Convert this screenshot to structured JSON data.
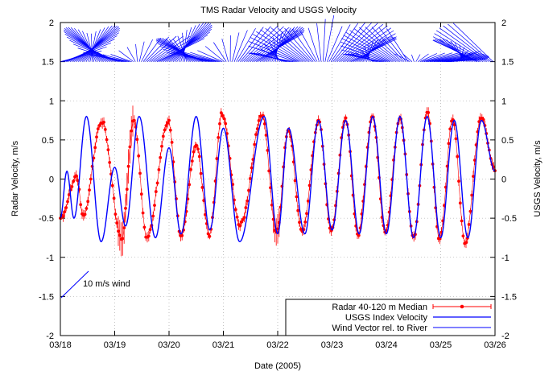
{
  "chart_data": {
    "type": "line",
    "title": "TMS Radar Velocity and USGS Velocity",
    "xlabel": "Date (2005)",
    "ylabel_left": "Radar Velocity, m/s",
    "ylabel_right": "USGS Velocity, m/s",
    "xlim": [
      "03/18",
      "03/26"
    ],
    "x_ticks": [
      "03/18",
      "03/19",
      "03/20",
      "03/21",
      "03/22",
      "03/23",
      "03/24",
      "03/25",
      "03/26"
    ],
    "ylim": [
      -2,
      2
    ],
    "y_ticks": [
      "-2",
      "-1.5",
      "-1",
      "-0.5",
      "0",
      "0.5",
      "1",
      "1.5",
      "2"
    ],
    "grid": "dotted",
    "legend_position": "bottom-right",
    "annotation": "10 m/s wind",
    "series": [
      {
        "name": "Radar 40-120 m Median",
        "color": "#ff0000",
        "marker": "circle",
        "error_bars": true,
        "extrema_day": [
          0.02,
          0.3,
          0.42,
          0.75,
          1.13,
          1.35,
          1.6,
          1.98,
          2.22,
          2.5,
          2.75,
          2.98,
          3.3,
          3.72,
          3.98,
          4.2,
          4.45,
          4.75,
          4.98,
          5.25,
          5.48,
          5.75,
          5.98,
          6.25,
          6.5,
          6.75,
          6.98,
          7.22,
          7.45,
          7.75,
          8.0
        ],
        "extrema_value": [
          -0.5,
          0.05,
          -0.5,
          0.75,
          -0.75,
          0.75,
          -0.75,
          0.75,
          -0.7,
          0.4,
          -0.7,
          0.85,
          -0.6,
          0.8,
          -0.7,
          0.65,
          -0.7,
          0.75,
          -0.65,
          0.75,
          -0.7,
          0.8,
          -0.7,
          0.8,
          -0.75,
          0.85,
          -0.75,
          0.75,
          -0.8,
          0.8,
          0.1
        ]
      },
      {
        "name": "USGS Index Velocity",
        "color": "#0000ff",
        "marker": "none",
        "extrema_day": [
          0.0,
          0.12,
          0.25,
          0.48,
          0.75,
          1.0,
          1.2,
          1.45,
          1.75,
          2.0,
          2.22,
          2.5,
          2.75,
          3.0,
          3.3,
          3.75,
          4.0,
          4.2,
          4.5,
          4.75,
          5.0,
          5.25,
          5.5,
          5.75,
          6.0,
          6.25,
          6.5,
          6.75,
          7.0,
          7.25,
          7.5,
          7.75,
          8.0
        ],
        "extrema_value": [
          -0.5,
          0.1,
          -0.5,
          0.8,
          -0.8,
          0.15,
          -0.6,
          0.8,
          -0.75,
          0.4,
          -0.7,
          0.8,
          -0.65,
          0.65,
          -0.8,
          0.8,
          -0.7,
          0.65,
          -0.7,
          0.75,
          -0.65,
          0.75,
          -0.7,
          0.8,
          -0.7,
          0.8,
          -0.75,
          0.8,
          -0.75,
          0.75,
          -0.75,
          0.75,
          0.1
        ]
      },
      {
        "name": "Wind Vector rel. to River",
        "color": "#0000ff",
        "marker": "none",
        "baseline": 1.5
      }
    ]
  }
}
